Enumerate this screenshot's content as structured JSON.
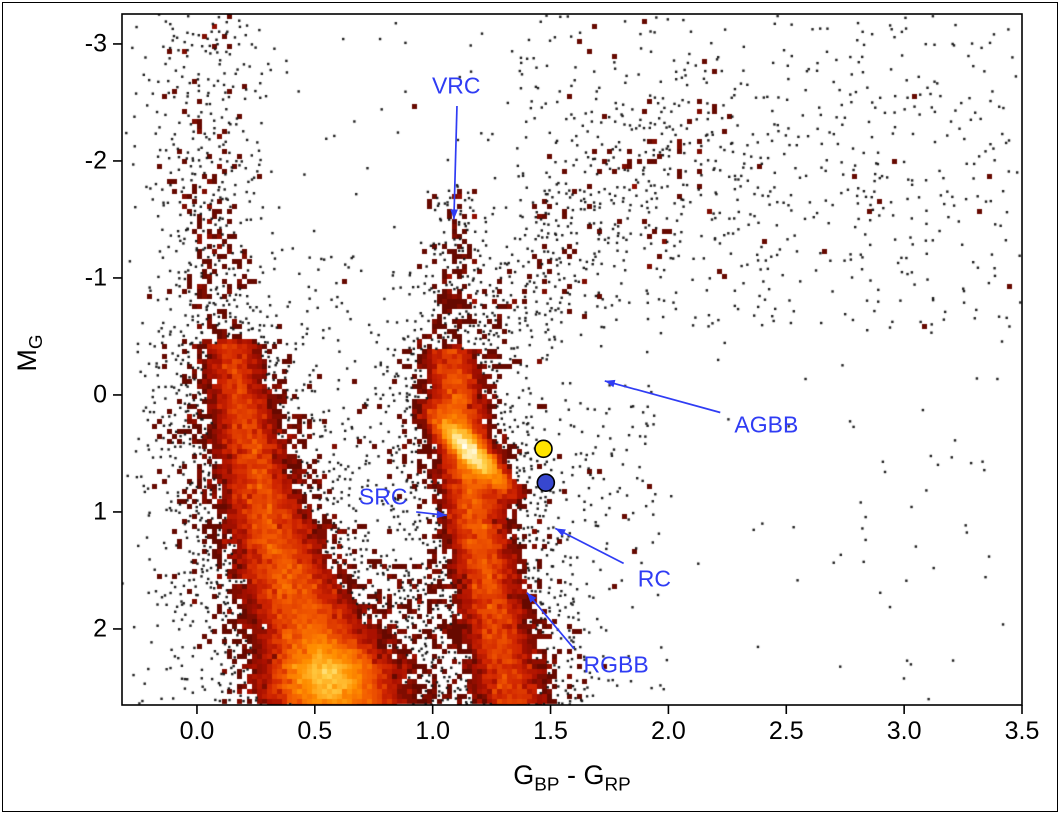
{
  "figure": {
    "background": "#ffffff",
    "border_color": "#000000"
  },
  "chart_data": {
    "type": "scatter",
    "style": "density-binned color-magnitude diagram with black outlier points",
    "title": "",
    "xlabel": "G_BP - G_RP",
    "ylabel": "M_G",
    "xlabel_parts": {
      "p1": "G",
      "s1": "BP",
      "p2": " - G",
      "s2": "RP"
    },
    "ylabel_parts": {
      "p1": "M",
      "s1": "G"
    },
    "x_axis": {
      "min": -0.318,
      "max": 3.5,
      "ticks": [
        0.0,
        0.5,
        1.0,
        1.5,
        2.0,
        2.5,
        3.0,
        3.5
      ],
      "tick_labels": [
        "0.0",
        "0.5",
        "1.0",
        "1.5",
        "2.0",
        "2.5",
        "3.0",
        "3.5"
      ]
    },
    "y_axis": {
      "min": -3.256,
      "max": 2.65,
      "inverted": true,
      "ticks": [
        -3,
        -2,
        -1,
        0,
        1,
        2
      ],
      "tick_labels": [
        "-3",
        "-2",
        "-1",
        "0",
        "1",
        "2"
      ]
    },
    "grid": false,
    "legend": false,
    "point_color": "#1a1a1a",
    "annotation_color": "#2f3cf4",
    "colormap": [
      [
        0.0,
        "#3f0300"
      ],
      [
        0.18,
        "#730b00"
      ],
      [
        0.35,
        "#a81000"
      ],
      [
        0.5,
        "#d02500"
      ],
      [
        0.65,
        "#f25900"
      ],
      [
        0.78,
        "#ff9000"
      ],
      [
        0.9,
        "#ffd24a"
      ],
      [
        1.0,
        "#fffff0"
      ]
    ],
    "annotations": [
      {
        "id": "vrc",
        "label": "VRC",
        "anchor": "center",
        "x": 1.1,
        "y": -2.64,
        "arrow": {
          "x1": 1.103,
          "y1": -2.47,
          "x2": 1.09,
          "y2": -1.5
        }
      },
      {
        "id": "agbb",
        "label": "AGBB",
        "anchor": "left",
        "x": 2.28,
        "y": 0.26,
        "arrow": {
          "x1": 2.22,
          "y1": 0.15,
          "x2": 1.73,
          "y2": -0.12
        }
      },
      {
        "id": "src",
        "label": "SRC",
        "anchor": "center",
        "x": 0.79,
        "y": 0.87,
        "arrow": {
          "x1": 0.93,
          "y1": 1.0,
          "x2": 1.06,
          "y2": 1.03
        }
      },
      {
        "id": "rc",
        "label": "RC",
        "anchor": "left",
        "x": 1.87,
        "y": 1.57,
        "arrow": {
          "x1": 1.81,
          "y1": 1.44,
          "x2": 1.52,
          "y2": 1.14
        }
      },
      {
        "id": "rgbb",
        "label": "RGBB",
        "anchor": "left",
        "x": 1.64,
        "y": 2.31,
        "arrow": {
          "x1": 1.6,
          "y1": 2.17,
          "x2": 1.4,
          "y2": 1.69
        }
      }
    ],
    "markers": [
      {
        "name": "yellow-circle-marker",
        "x": 1.47,
        "y": 0.46,
        "r": 8.5,
        "fill": "#ffe400",
        "stroke": "#000000"
      },
      {
        "name": "blue-circle-marker",
        "x": 1.48,
        "y": 0.75,
        "r": 8.5,
        "fill": "#3747cf",
        "stroke": "#000000"
      }
    ],
    "populations": [
      {
        "name": "main-sequence-band",
        "type": "band",
        "count": 16000,
        "y0": -0.45,
        "y1": 2.66,
        "centers": [
          [
            -0.45,
            0.14
          ],
          [
            0,
            0.18
          ],
          [
            0.5,
            0.23
          ],
          [
            1,
            0.29
          ],
          [
            1.5,
            0.37
          ],
          [
            2,
            0.48
          ],
          [
            2.66,
            0.62
          ]
        ],
        "sigmas": [
          [
            -0.45,
            0.055
          ],
          [
            1,
            0.08
          ],
          [
            2,
            0.11
          ],
          [
            2.66,
            0.125
          ]
        ],
        "weights": [
          [
            -0.45,
            0.3
          ],
          [
            0,
            0.35
          ],
          [
            0.5,
            0.45
          ],
          [
            1,
            0.6
          ],
          [
            1.5,
            0.8
          ],
          [
            2,
            1
          ],
          [
            2.66,
            1
          ]
        ]
      },
      {
        "name": "ms-bright-core",
        "type": "blob",
        "count": 8000,
        "cx": 0.55,
        "cy": 2.42,
        "sx": 0.12,
        "sy": 0.18
      },
      {
        "name": "rgb-band",
        "type": "band",
        "count": 11000,
        "y0": -0.4,
        "y1": 2.66,
        "centers": [
          [
            -0.4,
            1.07
          ],
          [
            0,
            1.1
          ],
          [
            0.5,
            1.14
          ],
          [
            1,
            1.18
          ],
          [
            1.5,
            1.22
          ],
          [
            2,
            1.27
          ],
          [
            2.66,
            1.34
          ]
        ],
        "sigmas": [
          [
            -0.4,
            0.05
          ],
          [
            1,
            0.06
          ],
          [
            2.66,
            0.075
          ]
        ],
        "weights": [
          [
            -0.4,
            0.45
          ],
          [
            0,
            0.8
          ],
          [
            0.6,
            1
          ],
          [
            1.2,
            0.9
          ],
          [
            2,
            0.8
          ],
          [
            2.66,
            0.75
          ]
        ]
      },
      {
        "name": "red-clump",
        "type": "streak",
        "count": 5200,
        "cx": 1.16,
        "cy": 0.48,
        "dx": 0.075,
        "dy": 0.16,
        "sx": 0.032,
        "sy": 0.05
      },
      {
        "name": "ms-outskirts",
        "type": "band",
        "count": 3000,
        "y0": -0.45,
        "y1": 2.66,
        "centers": [
          [
            -0.45,
            0.14
          ],
          [
            0,
            0.18
          ],
          [
            0.5,
            0.23
          ],
          [
            1,
            0.29
          ],
          [
            1.5,
            0.37
          ],
          [
            2,
            0.48
          ],
          [
            2.66,
            0.62
          ]
        ],
        "sigmas": [
          [
            -0.45,
            0.14
          ],
          [
            1,
            0.2
          ],
          [
            2.66,
            0.3
          ]
        ],
        "weights": [
          [
            -0.45,
            0.5
          ],
          [
            1,
            0.7
          ],
          [
            2.66,
            1
          ]
        ]
      },
      {
        "name": "blue-plume",
        "type": "band",
        "count": 650,
        "y0": -3.26,
        "y1": -0.4,
        "centers": [
          [
            -3.26,
            0.02
          ],
          [
            -2,
            0.05
          ],
          [
            -1,
            0.09
          ],
          [
            -0.4,
            0.13
          ]
        ],
        "sigmas": [
          [
            -3.26,
            0.13
          ],
          [
            -1.5,
            0.1
          ],
          [
            -0.4,
            0.08
          ]
        ],
        "weights": [
          [
            -3.26,
            0.35
          ],
          [
            -2.5,
            0.5
          ],
          [
            -1.5,
            0.8
          ],
          [
            -0.4,
            1
          ]
        ]
      },
      {
        "name": "rgb-outskirts",
        "type": "band",
        "count": 2300,
        "y0": -0.4,
        "y1": 2.66,
        "centers": [
          [
            -0.4,
            1.07
          ],
          [
            0,
            1.1
          ],
          [
            0.5,
            1.14
          ],
          [
            1,
            1.18
          ],
          [
            1.5,
            1.22
          ],
          [
            2,
            1.27
          ],
          [
            2.66,
            1.34
          ]
        ],
        "sigmas": [
          [
            -0.4,
            0.13
          ],
          [
            2.66,
            0.2
          ]
        ],
        "weights": [
          [
            -0.4,
            0.8
          ],
          [
            2.66,
            1
          ]
        ]
      },
      {
        "name": "vrc-column",
        "type": "band",
        "count": 300,
        "y0": -1.75,
        "y1": -0.4,
        "centers": [
          [
            -1.75,
            1.1
          ],
          [
            -0.4,
            1.08
          ]
        ],
        "sigmas": [
          [
            -1.75,
            0.06
          ],
          [
            -0.4,
            0.09
          ]
        ],
        "weights": [
          [
            -1.75,
            0.7
          ],
          [
            -0.4,
            1
          ]
        ]
      },
      {
        "name": "agb-plume",
        "type": "diag",
        "count": 520,
        "x0": 1.12,
        "y0": -0.35,
        "x1": 2.05,
        "y1": -2.3,
        "sx": 0.16,
        "sy": 0.25,
        "taper": 1.5
      },
      {
        "name": "upper-right-field",
        "type": "uniform",
        "count": 430,
        "x0": 1.35,
        "x1": 3.5,
        "y0": -3.26,
        "y1": -0.55
      },
      {
        "name": "upper-right-cluster",
        "type": "blob",
        "count": 270,
        "cx": 2.2,
        "cy": -1.9,
        "sx": 0.5,
        "sy": 0.55
      },
      {
        "name": "sparse-field",
        "type": "uniform",
        "count": 280,
        "x0": -0.3,
        "x1": 3.45,
        "y0": -3.2,
        "y1": 2.6
      },
      {
        "name": "left-edge-stars",
        "type": "blob",
        "count": 160,
        "cx": -0.08,
        "cy": -0.3,
        "sx": 0.09,
        "sy": 0.9
      },
      {
        "name": "ms-rgb-gap",
        "type": "uniform",
        "count": 260,
        "x0": 0.72,
        "x1": 1.02,
        "y0": 1.4,
        "y1": 2.66
      },
      {
        "name": "mid-field",
        "type": "uniform",
        "count": 170,
        "x0": 0.25,
        "x1": 0.95,
        "y0": -1.2,
        "y1": 1.2
      },
      {
        "name": "right-of-rgb-field",
        "type": "uniform",
        "count": 130,
        "x0": 1.35,
        "x1": 1.95,
        "y0": -0.1,
        "y1": 1.4
      }
    ]
  }
}
